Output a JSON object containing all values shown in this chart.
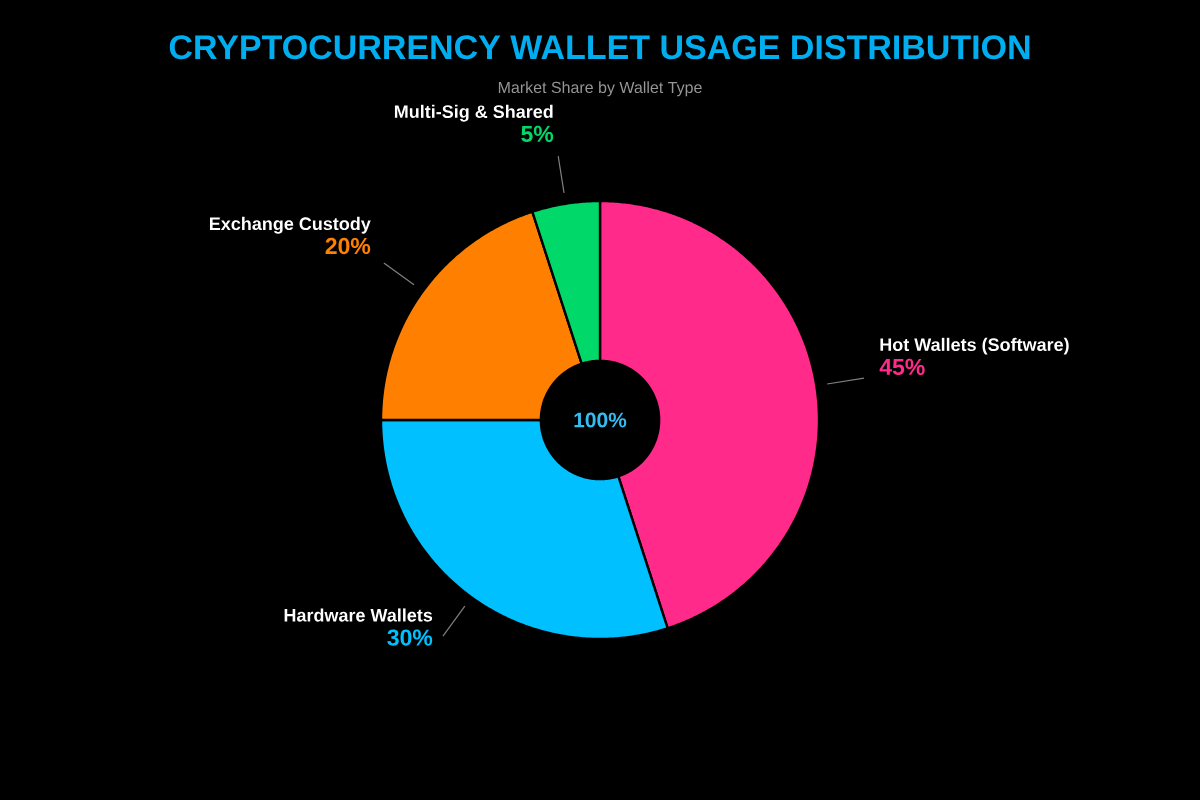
{
  "chart_data": {
    "type": "donut",
    "title": "CRYPTOCURRENCY WALLET USAGE DISTRIBUTION",
    "subtitle": "Market Share by Wallet Type",
    "categories": [
      "Hot Wallets (Software)",
      "Hardware Wallets",
      "Exchange Custody",
      "Multi-Sig & Shared"
    ],
    "values": [
      45,
      30,
      20,
      5
    ],
    "colors": [
      "#ff2a8a",
      "#00c0ff",
      "#ff8000",
      "#00d96a"
    ],
    "value_labels": [
      "45%",
      "30%",
      "20%",
      "5%"
    ],
    "annotations": [
      "100%"
    ]
  }
}
